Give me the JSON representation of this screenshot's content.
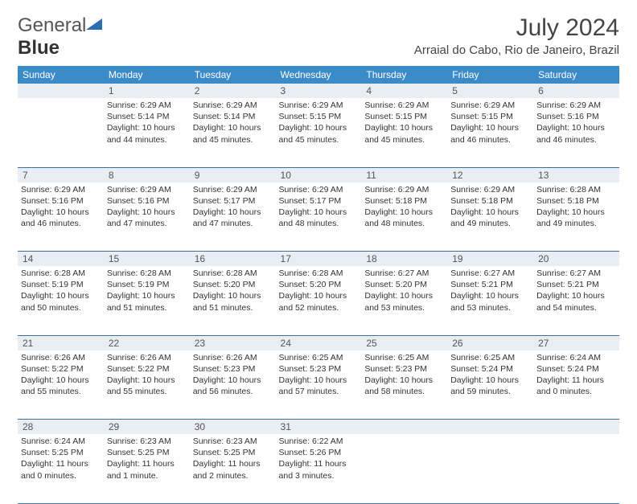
{
  "logo": {
    "text1": "General",
    "text2": "Blue"
  },
  "title": "July 2024",
  "location": "Arraial do Cabo, Rio de Janeiro, Brazil",
  "colors": {
    "header_bg": "#3b8bc8",
    "header_text": "#ffffff",
    "daynum_bg": "#e8eef3",
    "border": "#3b6fa0",
    "body_text": "#333333",
    "logo_blue": "#2b6fb0"
  },
  "fonts": {
    "title_size": 30,
    "location_size": 15,
    "header_size": 12,
    "cell_size": 10.5
  },
  "day_headers": [
    "Sunday",
    "Monday",
    "Tuesday",
    "Wednesday",
    "Thursday",
    "Friday",
    "Saturday"
  ],
  "weeks": [
    {
      "nums": [
        "",
        "1",
        "2",
        "3",
        "4",
        "5",
        "6"
      ],
      "cells": [
        null,
        {
          "sunrise": "Sunrise: 6:29 AM",
          "sunset": "Sunset: 5:14 PM",
          "day1": "Daylight: 10 hours",
          "day2": "and 44 minutes."
        },
        {
          "sunrise": "Sunrise: 6:29 AM",
          "sunset": "Sunset: 5:14 PM",
          "day1": "Daylight: 10 hours",
          "day2": "and 45 minutes."
        },
        {
          "sunrise": "Sunrise: 6:29 AM",
          "sunset": "Sunset: 5:15 PM",
          "day1": "Daylight: 10 hours",
          "day2": "and 45 minutes."
        },
        {
          "sunrise": "Sunrise: 6:29 AM",
          "sunset": "Sunset: 5:15 PM",
          "day1": "Daylight: 10 hours",
          "day2": "and 45 minutes."
        },
        {
          "sunrise": "Sunrise: 6:29 AM",
          "sunset": "Sunset: 5:15 PM",
          "day1": "Daylight: 10 hours",
          "day2": "and 46 minutes."
        },
        {
          "sunrise": "Sunrise: 6:29 AM",
          "sunset": "Sunset: 5:16 PM",
          "day1": "Daylight: 10 hours",
          "day2": "and 46 minutes."
        }
      ]
    },
    {
      "nums": [
        "7",
        "8",
        "9",
        "10",
        "11",
        "12",
        "13"
      ],
      "cells": [
        {
          "sunrise": "Sunrise: 6:29 AM",
          "sunset": "Sunset: 5:16 PM",
          "day1": "Daylight: 10 hours",
          "day2": "and 46 minutes."
        },
        {
          "sunrise": "Sunrise: 6:29 AM",
          "sunset": "Sunset: 5:16 PM",
          "day1": "Daylight: 10 hours",
          "day2": "and 47 minutes."
        },
        {
          "sunrise": "Sunrise: 6:29 AM",
          "sunset": "Sunset: 5:17 PM",
          "day1": "Daylight: 10 hours",
          "day2": "and 47 minutes."
        },
        {
          "sunrise": "Sunrise: 6:29 AM",
          "sunset": "Sunset: 5:17 PM",
          "day1": "Daylight: 10 hours",
          "day2": "and 48 minutes."
        },
        {
          "sunrise": "Sunrise: 6:29 AM",
          "sunset": "Sunset: 5:18 PM",
          "day1": "Daylight: 10 hours",
          "day2": "and 48 minutes."
        },
        {
          "sunrise": "Sunrise: 6:29 AM",
          "sunset": "Sunset: 5:18 PM",
          "day1": "Daylight: 10 hours",
          "day2": "and 49 minutes."
        },
        {
          "sunrise": "Sunrise: 6:28 AM",
          "sunset": "Sunset: 5:18 PM",
          "day1": "Daylight: 10 hours",
          "day2": "and 49 minutes."
        }
      ]
    },
    {
      "nums": [
        "14",
        "15",
        "16",
        "17",
        "18",
        "19",
        "20"
      ],
      "cells": [
        {
          "sunrise": "Sunrise: 6:28 AM",
          "sunset": "Sunset: 5:19 PM",
          "day1": "Daylight: 10 hours",
          "day2": "and 50 minutes."
        },
        {
          "sunrise": "Sunrise: 6:28 AM",
          "sunset": "Sunset: 5:19 PM",
          "day1": "Daylight: 10 hours",
          "day2": "and 51 minutes."
        },
        {
          "sunrise": "Sunrise: 6:28 AM",
          "sunset": "Sunset: 5:20 PM",
          "day1": "Daylight: 10 hours",
          "day2": "and 51 minutes."
        },
        {
          "sunrise": "Sunrise: 6:28 AM",
          "sunset": "Sunset: 5:20 PM",
          "day1": "Daylight: 10 hours",
          "day2": "and 52 minutes."
        },
        {
          "sunrise": "Sunrise: 6:27 AM",
          "sunset": "Sunset: 5:20 PM",
          "day1": "Daylight: 10 hours",
          "day2": "and 53 minutes."
        },
        {
          "sunrise": "Sunrise: 6:27 AM",
          "sunset": "Sunset: 5:21 PM",
          "day1": "Daylight: 10 hours",
          "day2": "and 53 minutes."
        },
        {
          "sunrise": "Sunrise: 6:27 AM",
          "sunset": "Sunset: 5:21 PM",
          "day1": "Daylight: 10 hours",
          "day2": "and 54 minutes."
        }
      ]
    },
    {
      "nums": [
        "21",
        "22",
        "23",
        "24",
        "25",
        "26",
        "27"
      ],
      "cells": [
        {
          "sunrise": "Sunrise: 6:26 AM",
          "sunset": "Sunset: 5:22 PM",
          "day1": "Daylight: 10 hours",
          "day2": "and 55 minutes."
        },
        {
          "sunrise": "Sunrise: 6:26 AM",
          "sunset": "Sunset: 5:22 PM",
          "day1": "Daylight: 10 hours",
          "day2": "and 55 minutes."
        },
        {
          "sunrise": "Sunrise: 6:26 AM",
          "sunset": "Sunset: 5:23 PM",
          "day1": "Daylight: 10 hours",
          "day2": "and 56 minutes."
        },
        {
          "sunrise": "Sunrise: 6:25 AM",
          "sunset": "Sunset: 5:23 PM",
          "day1": "Daylight: 10 hours",
          "day2": "and 57 minutes."
        },
        {
          "sunrise": "Sunrise: 6:25 AM",
          "sunset": "Sunset: 5:23 PM",
          "day1": "Daylight: 10 hours",
          "day2": "and 58 minutes."
        },
        {
          "sunrise": "Sunrise: 6:25 AM",
          "sunset": "Sunset: 5:24 PM",
          "day1": "Daylight: 10 hours",
          "day2": "and 59 minutes."
        },
        {
          "sunrise": "Sunrise: 6:24 AM",
          "sunset": "Sunset: 5:24 PM",
          "day1": "Daylight: 11 hours",
          "day2": "and 0 minutes."
        }
      ]
    },
    {
      "nums": [
        "28",
        "29",
        "30",
        "31",
        "",
        "",
        ""
      ],
      "cells": [
        {
          "sunrise": "Sunrise: 6:24 AM",
          "sunset": "Sunset: 5:25 PM",
          "day1": "Daylight: 11 hours",
          "day2": "and 0 minutes."
        },
        {
          "sunrise": "Sunrise: 6:23 AM",
          "sunset": "Sunset: 5:25 PM",
          "day1": "Daylight: 11 hours",
          "day2": "and 1 minute."
        },
        {
          "sunrise": "Sunrise: 6:23 AM",
          "sunset": "Sunset: 5:25 PM",
          "day1": "Daylight: 11 hours",
          "day2": "and 2 minutes."
        },
        {
          "sunrise": "Sunrise: 6:22 AM",
          "sunset": "Sunset: 5:26 PM",
          "day1": "Daylight: 11 hours",
          "day2": "and 3 minutes."
        },
        null,
        null,
        null
      ]
    }
  ]
}
